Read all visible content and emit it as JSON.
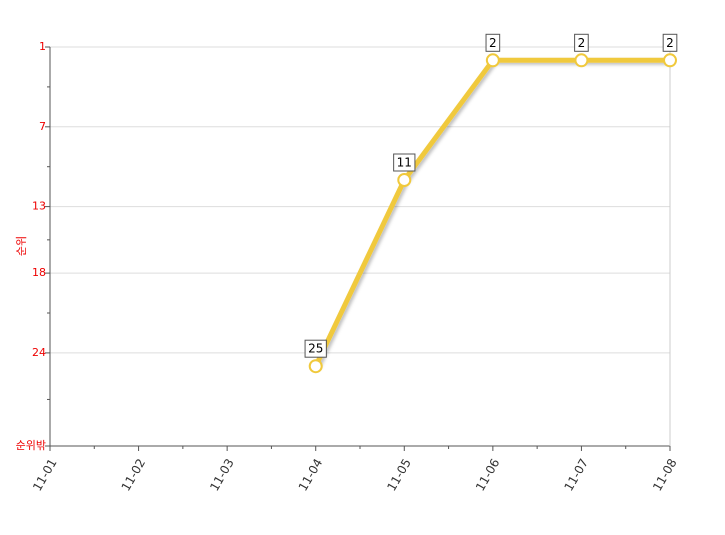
{
  "chart_data": {
    "type": "line",
    "y_label": "순위",
    "categories": [
      "11-01",
      "11-02",
      "11-03",
      "11-04",
      "11-05",
      "11-06",
      "11-07",
      "11-08"
    ],
    "series": [
      {
        "color": "#f0c93c",
        "values": [
          null,
          null,
          null,
          25,
          11,
          2,
          2,
          2
        ]
      }
    ],
    "ylim": [
      1,
      31
    ],
    "y_inverted": true,
    "yticks": [
      1,
      7,
      13,
      18,
      24,
      {
        "value": 31,
        "label": "순위밖"
      }
    ],
    "grid": true
  }
}
